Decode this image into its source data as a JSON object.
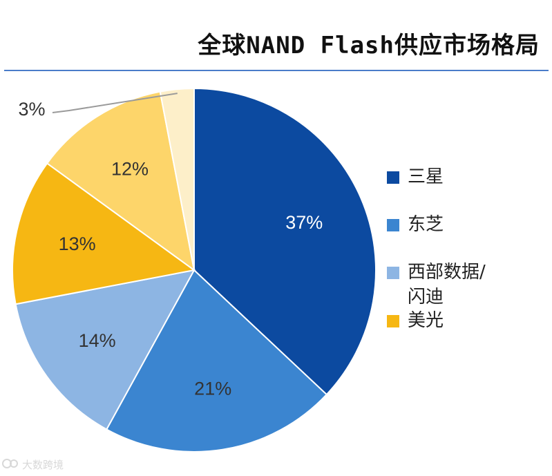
{
  "title": "全球NAND Flash供应市场格局",
  "chart_data": {
    "type": "pie",
    "title": "全球NAND Flash供应市场格局",
    "start_angle_deg": 0,
    "direction": "clockwise",
    "slices": [
      {
        "name": "三星",
        "value": 37,
        "label": "37%",
        "color": "#0c4aa0",
        "label_color": "#ffffff",
        "legend": true
      },
      {
        "name": "东芝",
        "value": 21,
        "label": "21%",
        "color": "#3b85d0",
        "label_color": "#333333",
        "legend": true
      },
      {
        "name": "西部数据/闪迪",
        "value": 14,
        "label": "14%",
        "color": "#8db5e3",
        "label_color": "#333333",
        "legend": true
      },
      {
        "name": "美光",
        "value": 13,
        "label": "13%",
        "color": "#f6b713",
        "label_color": "#333333",
        "legend": true
      },
      {
        "name": "",
        "value": 12,
        "label": "12%",
        "color": "#fdd56a",
        "label_color": "#333333",
        "legend": false
      },
      {
        "name": "",
        "value": 3,
        "label": "3%",
        "color": "#fdefc9",
        "label_color": "#333333",
        "legend": false,
        "leader_line": true
      }
    ]
  },
  "legend": {
    "items": [
      {
        "lines": [
          "三星"
        ],
        "color": "#0c4aa0"
      },
      {
        "lines": [
          "东芝"
        ],
        "color": "#3b85d0"
      },
      {
        "lines": [
          "西部数据/",
          "闪迪"
        ],
        "color": "#8db5e3"
      },
      {
        "lines": [
          "美光"
        ],
        "color": "#f6b713"
      }
    ]
  },
  "watermark": {
    "text": "大数跨境",
    "logo_icon": "watermark-logo-icon"
  }
}
